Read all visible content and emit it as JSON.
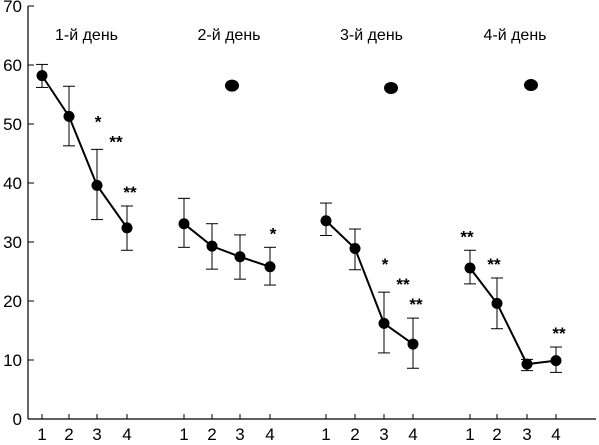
{
  "chart_data": {
    "type": "line",
    "ylim": [
      0,
      70
    ],
    "yticks": [
      0,
      10,
      20,
      30,
      40,
      50,
      60,
      70
    ],
    "grid": false,
    "colors": {
      "line": "#000000",
      "marker": "#000000"
    },
    "panels": [
      {
        "label": "1-й день",
        "x": [
          "1",
          "2",
          "3",
          "4"
        ],
        "values": [
          58.2,
          51.3,
          39.6,
          32.4
        ],
        "err_low": [
          56.2,
          46.3,
          33.8,
          28.6
        ],
        "err_high": [
          60.1,
          56.4,
          45.7,
          36.1
        ],
        "marks": [
          "",
          "",
          "* **",
          "**"
        ],
        "connected": true,
        "extra_point": null
      },
      {
        "label": "2-й день",
        "x": [
          "1",
          "2",
          "3",
          "4"
        ],
        "values": [
          33.1,
          29.3,
          27.5,
          25.8
        ],
        "err_low": [
          29.1,
          25.4,
          23.7,
          22.7
        ],
        "err_high": [
          37.4,
          33.1,
          31.2,
          29.1
        ],
        "marks": [
          "",
          "",
          "",
          "*"
        ],
        "connected": true,
        "extra_point": 56.5
      },
      {
        "label": "3-й день",
        "x": [
          "1",
          "2",
          "3",
          "4"
        ],
        "values": [
          33.6,
          28.9,
          16.2,
          12.7
        ],
        "err_low": [
          31.1,
          25.3,
          11.2,
          8.6
        ],
        "err_high": [
          36.6,
          32.2,
          21.5,
          17.1
        ],
        "marks": [
          "",
          "",
          "* **",
          "**"
        ],
        "connected": true,
        "extra_point": 56.1
      },
      {
        "label": "4-й день",
        "x": [
          "1",
          "2",
          "3",
          "4"
        ],
        "values": [
          25.6,
          19.6,
          9.3,
          9.9
        ],
        "err_low": [
          22.9,
          15.3,
          8.2,
          7.9
        ],
        "err_high": [
          28.6,
          23.9,
          10.1,
          12.2
        ],
        "marks": [
          "**",
          "**",
          "",
          "**"
        ],
        "connected": true,
        "extra_point": 56.6
      }
    ]
  }
}
